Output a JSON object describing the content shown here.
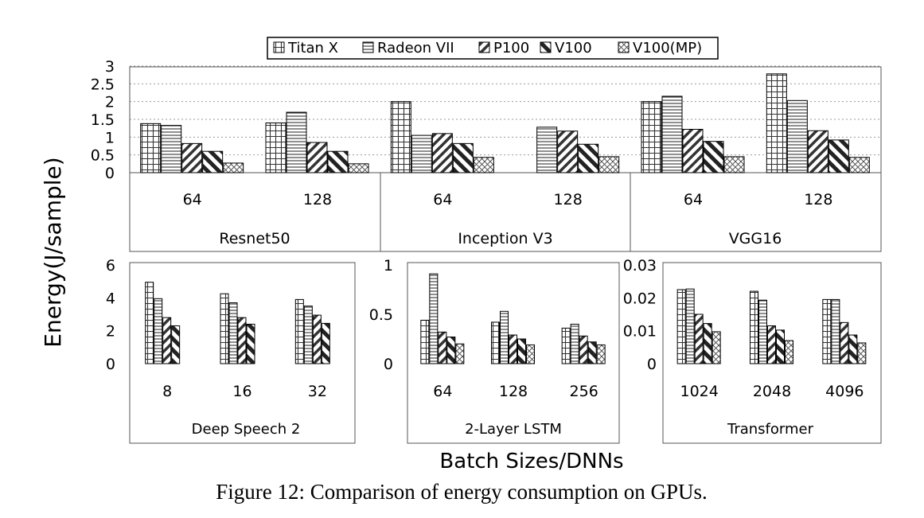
{
  "legend": {
    "entries": [
      {
        "label": "Titan X",
        "pattern": "grid"
      },
      {
        "label": "Radeon VII",
        "pattern": "hlines"
      },
      {
        "label": "P100",
        "pattern": "diag-fine"
      },
      {
        "label": "V100",
        "pattern": "diag-wide"
      },
      {
        "label": "V100(MP)",
        "pattern": "cross"
      }
    ]
  },
  "ylabel": "Energy(J/sample)",
  "xlabel": "Batch Sizes/DNNs",
  "caption": "Figure 12: Comparison of energy consumption on GPUs.",
  "chart_data": [
    {
      "type": "bar",
      "ylim": [
        0,
        3
      ],
      "yticks": [
        "0",
        "0.5",
        "1",
        "1.5",
        "2",
        "2.5",
        "3"
      ],
      "grid": true,
      "groups": [
        {
          "name": "Resnet50",
          "categories": [
            "64",
            "128"
          ]
        },
        {
          "name": "Inception V3",
          "categories": [
            "64",
            "128"
          ]
        },
        {
          "name": "VGG16",
          "categories": [
            "64",
            "128"
          ]
        }
      ],
      "categories": [
        "64",
        "128",
        "64",
        "128",
        "64",
        "128"
      ],
      "series": [
        {
          "name": "Titan X",
          "values": [
            1.38,
            1.4,
            2.0,
            null,
            2.0,
            2.78
          ]
        },
        {
          "name": "Radeon VII",
          "values": [
            1.33,
            1.7,
            1.05,
            1.28,
            2.15,
            2.03
          ]
        },
        {
          "name": "P100",
          "values": [
            0.82,
            0.85,
            1.1,
            1.17,
            1.22,
            1.18
          ]
        },
        {
          "name": "V100",
          "values": [
            0.6,
            0.6,
            0.82,
            0.8,
            0.88,
            0.92
          ]
        },
        {
          "name": "V100(MP)",
          "values": [
            0.27,
            0.25,
            0.43,
            0.45,
            0.45,
            0.43
          ]
        }
      ]
    },
    {
      "type": "bar",
      "title": "Deep Speech 2",
      "ylim": [
        0,
        6
      ],
      "yticks": [
        "0",
        "2",
        "4",
        "6"
      ],
      "grid": false,
      "categories": [
        "8",
        "16",
        "32"
      ],
      "series": [
        {
          "name": "Titan X",
          "values": [
            4.95,
            4.25,
            3.9
          ]
        },
        {
          "name": "Radeon VII",
          "values": [
            3.95,
            3.7,
            3.5
          ]
        },
        {
          "name": "P100",
          "values": [
            2.8,
            2.8,
            2.95
          ]
        },
        {
          "name": "V100",
          "values": [
            2.3,
            2.4,
            2.45
          ]
        },
        {
          "name": "V100(MP)",
          "values": [
            null,
            null,
            null
          ]
        }
      ]
    },
    {
      "type": "bar",
      "title": "2-Layer LSTM",
      "ylim": [
        0,
        1
      ],
      "yticks": [
        "0",
        "0.5",
        "1"
      ],
      "grid": false,
      "categories": [
        "64",
        "128",
        "256"
      ],
      "series": [
        {
          "name": "Titan X",
          "values": [
            0.44,
            0.42,
            0.36
          ]
        },
        {
          "name": "Radeon VII",
          "values": [
            0.91,
            0.53,
            0.4
          ]
        },
        {
          "name": "P100",
          "values": [
            0.32,
            0.29,
            0.28
          ]
        },
        {
          "name": "V100",
          "values": [
            0.27,
            0.25,
            0.22
          ]
        },
        {
          "name": "V100(MP)",
          "values": [
            0.2,
            0.19,
            0.19
          ]
        }
      ]
    },
    {
      "type": "bar",
      "title": "Transformer",
      "ylim": [
        0,
        0.03
      ],
      "yticks": [
        "0",
        "0.01",
        "0.02",
        "0.03"
      ],
      "grid": false,
      "categories": [
        "1024",
        "2048",
        "4096"
      ],
      "series": [
        {
          "name": "Titan X",
          "values": [
            0.0225,
            0.022,
            0.0195
          ]
        },
        {
          "name": "Radeon VII",
          "values": [
            0.0227,
            0.0193,
            0.0195
          ]
        },
        {
          "name": "P100",
          "values": [
            0.015,
            0.0115,
            0.0125
          ]
        },
        {
          "name": "V100",
          "values": [
            0.0122,
            0.0102,
            0.0087
          ]
        },
        {
          "name": "V100(MP)",
          "values": [
            0.0097,
            0.007,
            0.0063
          ]
        }
      ]
    }
  ]
}
